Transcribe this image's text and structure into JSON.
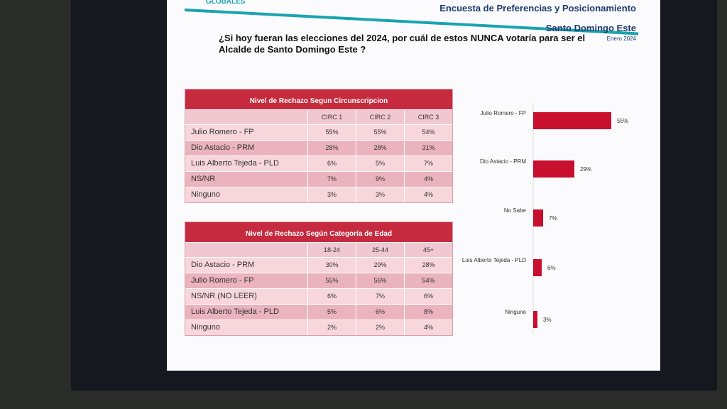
{
  "header": {
    "logo": "GLOBALES",
    "title": "Encuesta de Preferencias y Posicionamiento",
    "subtitle": "Santo Domingo Este",
    "date": "Enero 2024"
  },
  "question": "¿Si hoy fueran las elecciones del 2024, por cuál de estos NUNCA votaría para ser el Alcalde de Santo Domingo Este ?",
  "tables": [
    {
      "title": "Nivel de Rechazo Segun Circunscripcion",
      "columns": [
        "CIRC 1",
        "CIRC 2",
        "CIRC 3"
      ],
      "rows": [
        [
          "Julio Romero - FP",
          "55%",
          "55%",
          "54%"
        ],
        [
          "Dio Astacio - PRM",
          "28%",
          "28%",
          "31%"
        ],
        [
          "Luis Alberto Tejeda - PLD",
          "6%",
          "5%",
          "7%"
        ],
        [
          "NS/NR",
          "7%",
          "9%",
          "4%"
        ],
        [
          "Ninguno",
          "3%",
          "3%",
          "4%"
        ]
      ]
    },
    {
      "title": "Nivel de Rechazo Según Categoría de Edad",
      "columns": [
        "18-24",
        "25-44",
        "45+"
      ],
      "rows": [
        [
          "Dio Astacio - PRM",
          "30%",
          "29%",
          "28%"
        ],
        [
          "Julio Romero - FP",
          "55%",
          "56%",
          "54%"
        ],
        [
          "NS/NR (NO LEER)",
          "6%",
          "7%",
          "6%"
        ],
        [
          "Luis Alberto Tejeda - PLD",
          "5%",
          "6%",
          "8%"
        ],
        [
          "Ninguno",
          "2%",
          "2%",
          "4%"
        ]
      ]
    }
  ],
  "chart_data": {
    "type": "hbar",
    "categories": [
      "Julio Romero - FP",
      "Dio Astacio - PRM",
      "No Sabe",
      "Luis Alberto Tejeda - PLD",
      "Ninguno"
    ],
    "values": [
      55,
      29,
      7,
      6,
      3
    ],
    "value_labels": [
      "55%",
      "29%",
      "7%",
      "6%",
      "3%"
    ],
    "color": "#c8102e"
  }
}
